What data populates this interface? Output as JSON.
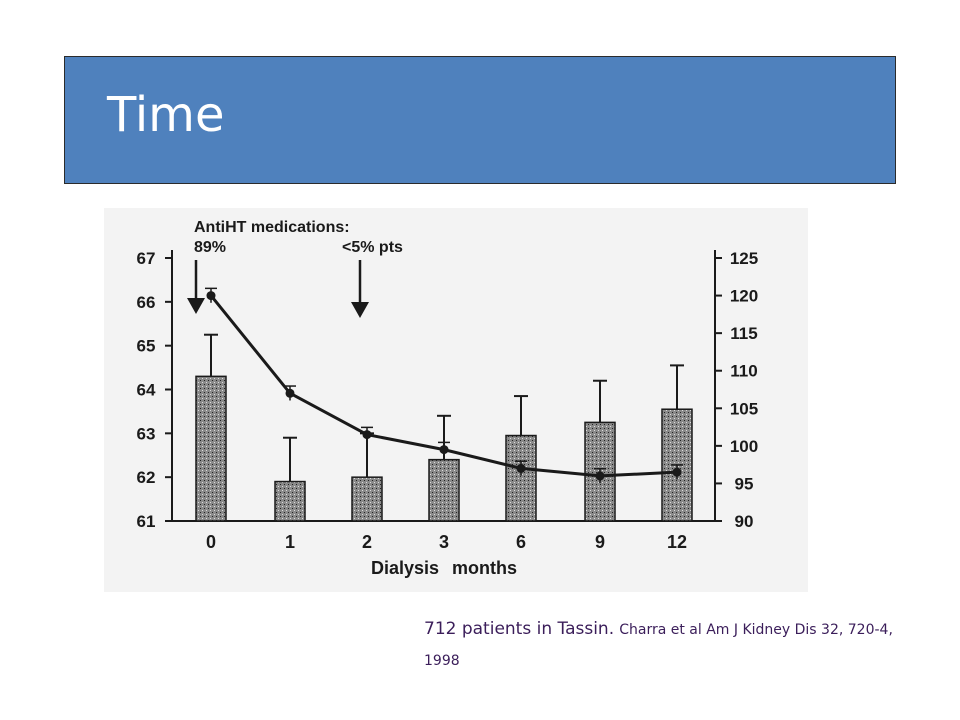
{
  "slide": {
    "title": "Time",
    "caption_main": "712 patients in Tassin.",
    "caption_ref": "Charra et al Am J Kidney Dis 32, 720-4, 1998",
    "title_color": "#4f81bd",
    "caption_color": "#3b1e5a"
  },
  "chart_data": {
    "type": "bar",
    "categories": [
      "0",
      "1",
      "2",
      "3",
      "6",
      "9",
      "12"
    ],
    "xlabel": "Dialysis months",
    "series": [
      {
        "kind": "bar",
        "axis": "left",
        "values": [
          64.3,
          61.9,
          62.0,
          62.4,
          62.95,
          63.25,
          63.55
        ],
        "errors": [
          0.95,
          1.0,
          1.0,
          1.0,
          0.9,
          0.95,
          1.0
        ]
      },
      {
        "kind": "line",
        "axis": "right",
        "values": [
          120.0,
          107.0,
          101.5,
          99.5,
          97.0,
          96.0,
          96.5
        ],
        "errors": [
          0.8,
          0.8,
          0.8,
          0.8,
          0.8,
          0.8,
          0.8
        ]
      }
    ],
    "y_left": {
      "ylim": [
        61,
        67
      ],
      "ticks": [
        "61",
        "62",
        "63",
        "64",
        "65",
        "66",
        "67"
      ]
    },
    "y_right": {
      "ylim": [
        90,
        125
      ],
      "ticks": [
        "90",
        "95",
        "100",
        "105",
        "110",
        "115",
        "120",
        "125"
      ]
    },
    "annotations": [
      {
        "id": "a1",
        "lines": [
          "AntiHT medications:",
          "89%"
        ],
        "category": "0"
      },
      {
        "id": "a2",
        "lines": [
          "<5% pts"
        ],
        "category": "2"
      }
    ]
  }
}
